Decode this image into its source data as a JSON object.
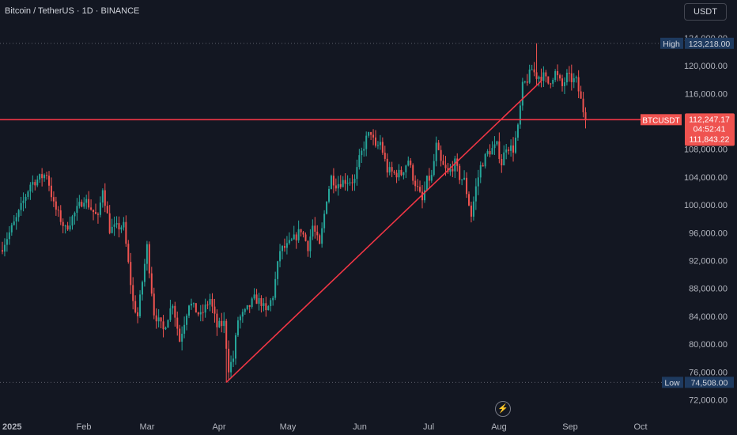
{
  "header": {
    "symbol_title": "Bitcoin / TetherUS · 1D · BINANCE",
    "currency_button": "USDT"
  },
  "colors": {
    "background": "#131722",
    "up": "#26a69a",
    "down": "#ef5350",
    "trendline": "#f23645",
    "label_blue": "#1e3a5f"
  },
  "icons": {
    "flash": "lightning-icon"
  },
  "chart_data": {
    "type": "candlestick",
    "ylim": [
      71000,
      125500
    ],
    "y_ticks": [
      "72,000.00",
      "76,000.00",
      "80,000.00",
      "84,000.00",
      "88,000.00",
      "92,000.00",
      "96,000.00",
      "100,000.00",
      "104,000.00",
      "108,000.00",
      "116,000.00",
      "120,000.00",
      "124,000.00"
    ],
    "x_ticks": [
      "2025",
      "Feb",
      "Mar",
      "Apr",
      "May",
      "Jun",
      "Jul",
      "Aug",
      "Sep",
      "Oct"
    ],
    "high": {
      "label": "High",
      "value": "123,218.00"
    },
    "low": {
      "label": "Low",
      "value": "74,508.00"
    },
    "current": {
      "symbol": "BTCUSDT",
      "price": "112,247.17",
      "countdown": "04:52:41",
      "level": "111,843.22"
    },
    "horizontal_level": 112247,
    "trendline": {
      "from": {
        "date": "Apr 7",
        "price": 74508
      },
      "to": {
        "date": "Aug 20",
        "price": 117800
      }
    },
    "keypoints": [
      [
        0,
        94000
      ],
      [
        6,
        98000
      ],
      [
        12,
        103000
      ],
      [
        19,
        104500
      ],
      [
        22,
        100000
      ],
      [
        27,
        96500
      ],
      [
        35,
        101000
      ],
      [
        41,
        98000
      ],
      [
        43,
        102500
      ],
      [
        46,
        96500
      ],
      [
        52,
        97000
      ],
      [
        56,
        86000
      ],
      [
        58,
        84000
      ],
      [
        62,
        94000
      ],
      [
        65,
        84500
      ],
      [
        69,
        82000
      ],
      [
        73,
        86000
      ],
      [
        76,
        80500
      ],
      [
        80,
        86000
      ],
      [
        85,
        84000
      ],
      [
        89,
        86500
      ],
      [
        92,
        82500
      ],
      [
        95,
        83000
      ],
      [
        97,
        76500
      ],
      [
        99,
        78000
      ],
      [
        101,
        83500
      ],
      [
        104,
        84500
      ],
      [
        108,
        86500
      ],
      [
        111,
        86000
      ],
      [
        113,
        84500
      ],
      [
        116,
        87000
      ],
      [
        119,
        93500
      ],
      [
        122,
        94000
      ],
      [
        126,
        95500
      ],
      [
        128,
        96500
      ],
      [
        131,
        94000
      ],
      [
        133,
        97000
      ],
      [
        136,
        94000
      ],
      [
        139,
        101000
      ],
      [
        141,
        104000
      ],
      [
        143,
        103000
      ],
      [
        147,
        103500
      ],
      [
        151,
        103500
      ],
      [
        153,
        106500
      ],
      [
        156,
        109500
      ],
      [
        158,
        110500
      ],
      [
        160,
        108000
      ],
      [
        162,
        109000
      ],
      [
        165,
        105000
      ],
      [
        168,
        104500
      ],
      [
        171,
        104500
      ],
      [
        174,
        106500
      ],
      [
        176,
        104000
      ],
      [
        180,
        100500
      ],
      [
        182,
        103500
      ],
      [
        184,
        104000
      ],
      [
        186,
        108500
      ],
      [
        188,
        106000
      ],
      [
        191,
        104500
      ],
      [
        194,
        106000
      ],
      [
        196,
        104000
      ],
      [
        198,
        103500
      ],
      [
        201,
        98500
      ],
      [
        203,
        102500
      ],
      [
        205,
        105500
      ],
      [
        208,
        107500
      ],
      [
        212,
        108500
      ],
      [
        214,
        106000
      ],
      [
        216,
        108500
      ],
      [
        219,
        108000
      ],
      [
        221,
        111000
      ],
      [
        223,
        117000
      ],
      [
        225,
        118000
      ],
      [
        227,
        119500
      ],
      [
        229,
        118500
      ],
      [
        232,
        118500
      ],
      [
        234,
        117500
      ],
      [
        237,
        119000
      ],
      [
        240,
        117000
      ],
      [
        242,
        118500
      ],
      [
        244,
        118000
      ],
      [
        246,
        117800
      ],
      [
        248,
        115000
      ],
      [
        250,
        112200
      ]
    ]
  }
}
